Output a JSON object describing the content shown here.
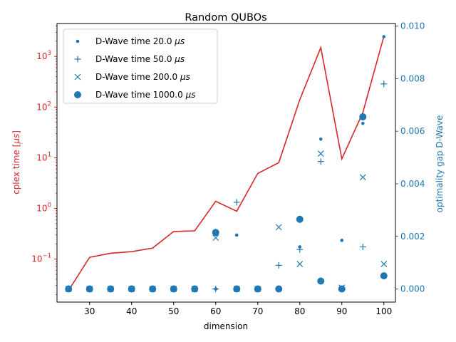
{
  "chart_data": {
    "type": "line",
    "title": "Random QUBOs",
    "xlabel": "dimension",
    "ylabel": "cplex time [$\\mu s$]",
    "ylabel_parts": [
      "cplex time [",
      "μs",
      "]"
    ],
    "y2label": "optimality gap D-Wave",
    "xlim": [
      22.25,
      102.75
    ],
    "x_ticks": [
      30,
      40,
      50,
      60,
      70,
      80,
      90,
      100
    ],
    "y_scale": "log",
    "ylim_log10": [
      -1.85,
      3.65
    ],
    "y_ticks": [
      {
        "exp": -1,
        "label": "10",
        "sup": "−1"
      },
      {
        "exp": 0,
        "label": "10",
        "sup": "0"
      },
      {
        "exp": 1,
        "label": "10",
        "sup": "1"
      },
      {
        "exp": 2,
        "label": "10",
        "sup": "2"
      },
      {
        "exp": 3,
        "label": "10",
        "sup": "3"
      }
    ],
    "y2lim": [
      -0.0005,
      0.0101
    ],
    "y2_ticks": [
      "0.000",
      "0.002",
      "0.004",
      "0.006",
      "0.008",
      "0.010"
    ],
    "y2_tick_values": [
      0,
      0.002,
      0.004,
      0.006,
      0.008,
      0.01
    ],
    "grid": false,
    "legend_position": "top-left",
    "colors": {
      "cplex": "#d62728",
      "dwave": "#1f77b4",
      "axis": "#000000"
    },
    "cplex_series": {
      "x": [
        25,
        30,
        35,
        40,
        45,
        50,
        55,
        60,
        65,
        70,
        75,
        80,
        85,
        90,
        95,
        100
      ],
      "y": [
        0.024,
        0.108,
        0.13,
        0.14,
        0.165,
        0.35,
        0.36,
        1.38,
        0.88,
        4.9,
        8.0,
        140,
        1500,
        9.5,
        78,
        2500
      ]
    },
    "series": [
      {
        "name": "D-Wave time 20.0 μs",
        "legend_prefix": "D-Wave time 20.0 ",
        "legend_unit": "μs",
        "marker": "dot",
        "x": [
          25,
          30,
          35,
          40,
          45,
          50,
          55,
          60,
          65,
          70,
          75,
          80,
          85,
          90,
          95,
          100
        ],
        "y": [
          0,
          0,
          0,
          0,
          0,
          0,
          0,
          0,
          0.00205,
          0,
          0,
          0.0016,
          0.0057,
          0.00185,
          0.0063,
          0.0096
        ]
      },
      {
        "name": "D-Wave time 50.0 μs",
        "legend_prefix": "D-Wave time 50.0 ",
        "legend_unit": "μs",
        "marker": "plus",
        "x": [
          25,
          30,
          35,
          40,
          45,
          50,
          55,
          60,
          65,
          70,
          75,
          80,
          85,
          90,
          95,
          100
        ],
        "y": [
          0,
          0,
          0,
          0,
          0,
          0,
          0,
          0,
          0.0033,
          0,
          0.0009,
          0.0015,
          0.00485,
          0,
          0.0016,
          0.0078
        ]
      },
      {
        "name": "D-Wave time 200.0 μs",
        "legend_prefix": "D-Wave time 200.0 ",
        "legend_unit": "μs",
        "marker": "x",
        "x": [
          25,
          30,
          35,
          40,
          45,
          50,
          55,
          60,
          65,
          70,
          75,
          80,
          85,
          90,
          95,
          100
        ],
        "y": [
          0,
          0,
          0,
          0,
          0,
          0,
          0,
          0.00195,
          0,
          0,
          0.00235,
          0.00095,
          0.00515,
          5e-05,
          0.00425,
          0.00095
        ]
      },
      {
        "name": "D-Wave time 1000.0 μs",
        "legend_prefix": "D-Wave time 1000.0 ",
        "legend_unit": "μs",
        "marker": "circle",
        "x": [
          25,
          30,
          35,
          40,
          45,
          50,
          55,
          60,
          65,
          70,
          75,
          80,
          85,
          90,
          95,
          100
        ],
        "y": [
          0,
          0,
          0,
          0,
          0,
          0,
          0,
          0.00215,
          0,
          0,
          0,
          0.00265,
          0.0003,
          0,
          0.00655,
          0.0005
        ]
      }
    ]
  }
}
